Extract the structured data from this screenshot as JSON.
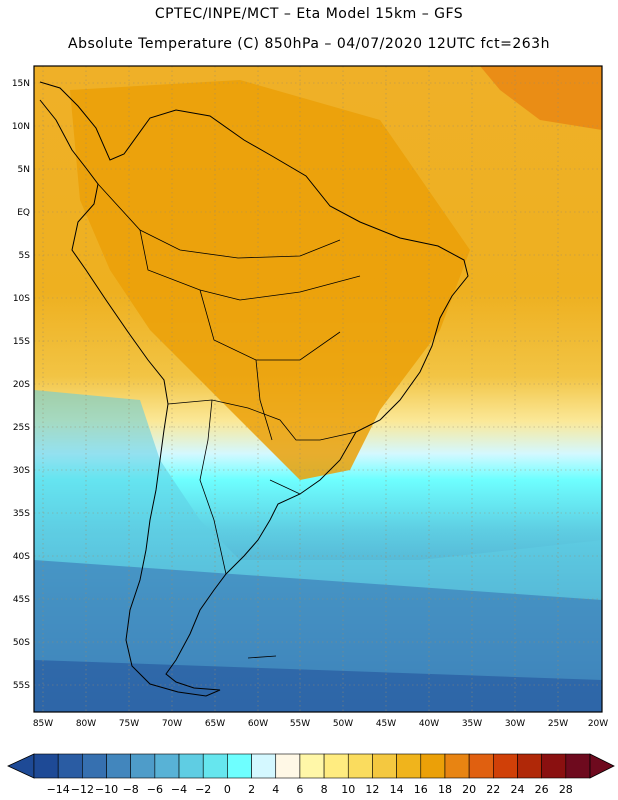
{
  "title": {
    "line1": "CPTEC/INPE/MCT –  Eta Model 15km – GFS",
    "line2": "Absolute Temperature (C) 850hPa – 04/07/2020 12UTC fct=263h"
  },
  "map": {
    "lat_labels": [
      "15N",
      "10N",
      "5N",
      "EQ",
      "5S",
      "10S",
      "15S",
      "20S",
      "25S",
      "30S",
      "35S",
      "40S",
      "45S",
      "50S",
      "55S"
    ],
    "lon_labels": [
      "85W",
      "80W",
      "75W",
      "70W",
      "65W",
      "60W",
      "55W",
      "50W",
      "45W",
      "40W",
      "35W",
      "30W",
      "25W",
      "20W"
    ]
  },
  "colorbar": {
    "labels": [
      "-14",
      "-12",
      "-10",
      "-8",
      "-6",
      "-4",
      "-2",
      "0",
      "2",
      "4",
      "6",
      "8",
      "10",
      "12",
      "14",
      "16",
      "18",
      "20",
      "22",
      "24",
      "26",
      "28"
    ],
    "colors": [
      "#1e4a96",
      "#2a5ca3",
      "#3670b0",
      "#4286bd",
      "#4e9cc9",
      "#58b2d6",
      "#5fcde3",
      "#66e6ee",
      "#6effff",
      "#d4f8ff",
      "#fff8e6",
      "#fff7a8",
      "#ffec80",
      "#fadc5e",
      "#f4c840",
      "#f0b41c",
      "#eba008",
      "#e88412",
      "#e06010",
      "#d04008",
      "#b02808",
      "#8a1010",
      "#6e0a1e"
    ]
  }
}
